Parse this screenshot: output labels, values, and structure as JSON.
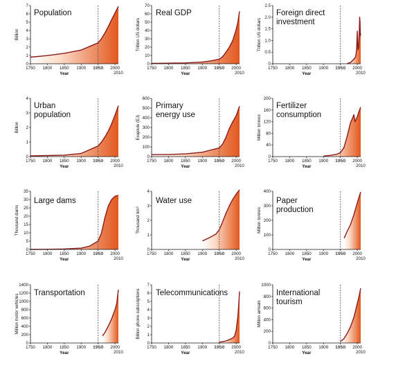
{
  "panel_title": {
    "population": "Population",
    "real_gdp": "Real GDP",
    "fdi_1": "Foreign direct",
    "fdi_2": "investment",
    "urban_1": "Urban",
    "urban_2": "population",
    "energy_1": "Primary",
    "energy_2": "energy use",
    "fert_1": "Fertilizer",
    "fert_2": "consumption",
    "dams": "Large dams",
    "water": "Water use",
    "paper_1": "Paper",
    "paper_2": "production",
    "transport": "Transportation",
    "telecom": "Telecommunications",
    "tourism_1": "International",
    "tourism_2": "tourism"
  },
  "colors": {
    "line": "#8b1a1a",
    "fill_dark": "#e2581e",
    "fill_light": "#ffffff",
    "divider": "#555555"
  },
  "chart_data": [
    {
      "type": "area",
      "title": "Population",
      "ylabel": "Billion",
      "xlabel": "Year",
      "ylim": [
        0,
        7
      ],
      "yticks": [
        "0",
        "1",
        "2",
        "3",
        "4",
        "5",
        "6",
        "7"
      ],
      "xticks": [
        "1750",
        "1800",
        "1850",
        "1900",
        "1950",
        "2000"
      ],
      "x_end_label": "2010",
      "divider_year": 1950,
      "x": [
        1750,
        1800,
        1850,
        1900,
        1950,
        1960,
        1970,
        1980,
        1990,
        2000,
        2010
      ],
      "y": [
        0.79,
        0.98,
        1.26,
        1.65,
        2.52,
        3.02,
        3.7,
        4.45,
        5.3,
        6.1,
        6.9
      ]
    },
    {
      "type": "area",
      "title": "Real GDP",
      "ylabel": "Trillion US dollars",
      "xlabel": "Year",
      "ylim": [
        0,
        70
      ],
      "yticks": [
        "0",
        "10",
        "20",
        "30",
        "40",
        "50",
        "60",
        "70"
      ],
      "xticks": [
        "1750",
        "1800",
        "1850",
        "1900",
        "1950",
        "2000"
      ],
      "x_end_label": "2010",
      "divider_year": 1950,
      "x": [
        1750,
        1800,
        1850,
        1900,
        1925,
        1950,
        1960,
        1970,
        1980,
        1990,
        2000,
        2005,
        2010
      ],
      "y": [
        0.5,
        0.7,
        1.0,
        2.0,
        3.5,
        5.5,
        8.5,
        14,
        20,
        28,
        41,
        50,
        63
      ]
    },
    {
      "type": "area",
      "title": "Foreign direct investment",
      "ylabel": "Trillion US dollars",
      "xlabel": "Year",
      "ylim": [
        0,
        2.5
      ],
      "yticks": [
        "0",
        "0.5",
        "1.0",
        "1.5",
        "2.0",
        "2.5"
      ],
      "xticks": [
        "1750",
        "1800",
        "1850",
        "1900",
        "1950",
        "2000"
      ],
      "x_end_label": "2010",
      "divider_year": 1950,
      "x": [
        1970,
        1980,
        1990,
        1995,
        1998,
        2000,
        2002,
        2004,
        2006,
        2007,
        2008,
        2009,
        2010
      ],
      "y": [
        0.01,
        0.05,
        0.2,
        0.3,
        0.6,
        1.4,
        0.6,
        0.7,
        1.4,
        2.0,
        1.8,
        1.2,
        1.3
      ]
    },
    {
      "type": "area",
      "title": "Urban population",
      "ylabel": "Billion",
      "xlabel": "Year",
      "ylim": [
        0,
        4
      ],
      "yticks": [
        "0",
        "1",
        "2",
        "3",
        "4"
      ],
      "xticks": [
        "1750",
        "1800",
        "1850",
        "1900",
        "1950",
        "2000"
      ],
      "x_end_label": "2010",
      "divider_year": 1950,
      "x": [
        1750,
        1800,
        1850,
        1900,
        1950,
        1960,
        1970,
        1980,
        1990,
        2000,
        2010
      ],
      "y": [
        0.05,
        0.07,
        0.1,
        0.22,
        0.73,
        1.0,
        1.35,
        1.75,
        2.25,
        2.85,
        3.5
      ]
    },
    {
      "type": "area",
      "title": "Primary energy use",
      "ylabel": "Exajoule (EJ)",
      "xlabel": "Year",
      "ylim": [
        0,
        600
      ],
      "yticks": [
        "0",
        "100",
        "200",
        "300",
        "400",
        "500",
        "600"
      ],
      "xticks": [
        "1750",
        "1800",
        "1850",
        "1900",
        "1950",
        "2000"
      ],
      "x_end_label": "2010",
      "divider_year": 1950,
      "x": [
        1750,
        1800,
        1850,
        1900,
        1925,
        1950,
        1960,
        1970,
        1980,
        1990,
        2000,
        2010
      ],
      "y": [
        20,
        22,
        28,
        45,
        68,
        90,
        130,
        200,
        290,
        360,
        420,
        520
      ]
    },
    {
      "type": "area",
      "title": "Fertilizer consumption",
      "ylabel": "Million tonnes",
      "xlabel": "Year",
      "ylim": [
        0,
        200
      ],
      "yticks": [
        "0",
        "40",
        "80",
        "120",
        "160",
        "200"
      ],
      "xticks": [
        "1750",
        "1800",
        "1850",
        "1900",
        "1950",
        "2000"
      ],
      "x_end_label": "2010",
      "divider_year": 1950,
      "x": [
        1900,
        1920,
        1940,
        1950,
        1960,
        1970,
        1980,
        1985,
        1990,
        1993,
        2000,
        2005,
        2010
      ],
      "y": [
        2,
        4,
        8,
        14,
        30,
        70,
        117,
        130,
        144,
        120,
        137,
        155,
        170
      ]
    },
    {
      "type": "area",
      "title": "Large dams",
      "ylabel": "Thousand dams",
      "xlabel": "Year",
      "ylim": [
        0,
        35
      ],
      "yticks": [
        "0",
        "5",
        "10",
        "15",
        "20",
        "25",
        "30",
        "35"
      ],
      "xticks": [
        "1750",
        "1800",
        "1850",
        "1900",
        "1950",
        "2000"
      ],
      "x_end_label": "2010",
      "divider_year": 1950,
      "x": [
        1750,
        1800,
        1850,
        1900,
        1925,
        1950,
        1960,
        1970,
        1980,
        1990,
        2000,
        2010
      ],
      "y": [
        0,
        0.1,
        0.3,
        0.8,
        2,
        5,
        10,
        19,
        26,
        30,
        32,
        32.5
      ]
    },
    {
      "type": "area",
      "title": "Water use",
      "ylabel": "Thousand km³",
      "xlabel": "Year",
      "ylim": [
        0,
        4
      ],
      "yticks": [
        "0",
        "1",
        "2",
        "3",
        "4"
      ],
      "xticks": [
        "1750",
        "1800",
        "1850",
        "1900",
        "1950",
        "2000"
      ],
      "x_end_label": "2010",
      "divider_year": 1950,
      "x": [
        1900,
        1920,
        1940,
        1950,
        1960,
        1970,
        1980,
        1990,
        2000,
        2010
      ],
      "y": [
        0.58,
        0.8,
        1.05,
        1.35,
        1.9,
        2.5,
        3.0,
        3.45,
        3.8,
        4.1
      ]
    },
    {
      "type": "area",
      "title": "Paper production",
      "ylabel": "Million tonnes",
      "xlabel": "Year",
      "ylim": [
        0,
        400
      ],
      "yticks": [
        "0",
        "100",
        "200",
        "300",
        "400"
      ],
      "xticks": [
        "1750",
        "1800",
        "1850",
        "1900",
        "1950",
        "2000"
      ],
      "x_end_label": "2010",
      "divider_year": 1950,
      "x": [
        1961,
        1970,
        1980,
        1990,
        2000,
        2005,
        2010
      ],
      "y": [
        77,
        125,
        170,
        240,
        320,
        360,
        395
      ]
    },
    {
      "type": "area",
      "title": "Transportation",
      "ylabel": "Million motor vehicles",
      "xlabel": "Year",
      "ylim": [
        0,
        1400
      ],
      "yticks": [
        "0",
        "200",
        "400",
        "600",
        "800",
        "1000",
        "1200",
        "1400"
      ],
      "xticks": [
        "1750",
        "1800",
        "1850",
        "1900",
        "1950",
        "2000"
      ],
      "x_end_label": "2010",
      "divider_year": 1950,
      "x": [
        1963,
        1970,
        1980,
        1990,
        2000,
        2005,
        2010
      ],
      "y": [
        170,
        250,
        400,
        580,
        800,
        950,
        1280
      ]
    },
    {
      "type": "area",
      "title": "Telecommunications",
      "ylabel": "Billion phone subscriptions",
      "xlabel": "Year",
      "ylim": [
        0,
        7
      ],
      "yticks": [
        "0",
        "1",
        "2",
        "3",
        "4",
        "5",
        "6",
        "7"
      ],
      "xticks": [
        "1750",
        "1800",
        "1850",
        "1900",
        "1950",
        "2000"
      ],
      "x_end_label": "2010",
      "divider_year": 1950,
      "x": [
        1950,
        1960,
        1970,
        1980,
        1990,
        1995,
        2000,
        2005,
        2008,
        2010
      ],
      "y": [
        0.1,
        0.15,
        0.25,
        0.4,
        0.6,
        0.8,
        1.5,
        3.2,
        4.8,
        6.2
      ]
    },
    {
      "type": "area",
      "title": "International tourism",
      "ylabel": "Million arrivals",
      "xlabel": "Year",
      "ylim": [
        0,
        1000
      ],
      "yticks": [
        "0",
        "200",
        "400",
        "600",
        "800",
        "1000"
      ],
      "xticks": [
        "1750",
        "1800",
        "1850",
        "1900",
        "1950",
        "2000"
      ],
      "x_end_label": "2010",
      "divider_year": 1950,
      "x": [
        1950,
        1960,
        1970,
        1980,
        1990,
        2000,
        2005,
        2010
      ],
      "y": [
        25,
        70,
        165,
        280,
        440,
        680,
        800,
        940
      ]
    }
  ]
}
